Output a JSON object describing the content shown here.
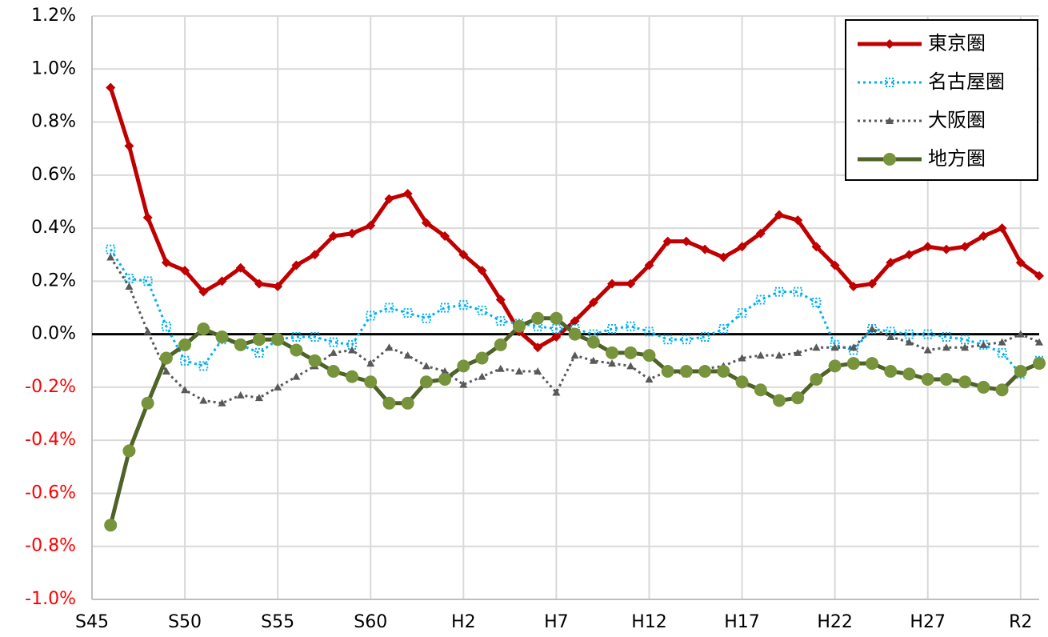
{
  "chart_data": {
    "type": "line",
    "categories": [
      "S45",
      null,
      null,
      null,
      null,
      "S50",
      null,
      null,
      null,
      null,
      "S55",
      null,
      null,
      null,
      null,
      "S60",
      null,
      null,
      null,
      null,
      "H2",
      null,
      null,
      null,
      null,
      "H7",
      null,
      null,
      null,
      null,
      "H12",
      null,
      null,
      null,
      null,
      "H17",
      null,
      null,
      null,
      null,
      "H22",
      null,
      null,
      null,
      null,
      "H27",
      null,
      null,
      null,
      null,
      "R2",
      null
    ],
    "series": [
      {
        "name": "東京圏",
        "color": "#c00000",
        "marker": "diamond",
        "dash": "solid",
        "values": [
          null,
          0.93,
          0.71,
          0.44,
          0.27,
          0.24,
          0.16,
          0.2,
          0.25,
          0.19,
          0.18,
          0.26,
          0.3,
          0.37,
          0.38,
          0.41,
          0.51,
          0.53,
          0.42,
          0.37,
          0.3,
          0.24,
          0.13,
          0.01,
          -0.05,
          -0.01,
          0.05,
          0.12,
          0.19,
          0.19,
          0.26,
          0.35,
          0.35,
          0.32,
          0.29,
          0.33,
          0.38,
          0.45,
          0.43,
          0.33,
          0.26,
          0.18,
          0.19,
          0.27,
          0.3,
          0.33,
          0.32,
          0.33,
          0.37,
          0.4,
          0.27,
          0.22
        ]
      },
      {
        "name": "名古屋圏",
        "color": "#00b0f0",
        "marker": "square",
        "dash": "dotted",
        "values": [
          null,
          0.32,
          0.21,
          0.2,
          0.03,
          -0.1,
          -0.12,
          -0.02,
          -0.04,
          -0.07,
          -0.02,
          -0.01,
          -0.01,
          -0.03,
          -0.04,
          0.07,
          0.1,
          0.08,
          0.06,
          0.1,
          0.11,
          0.09,
          0.05,
          0.04,
          0.03,
          0.02,
          0.02,
          0.0,
          0.02,
          0.03,
          0.01,
          -0.02,
          -0.02,
          -0.01,
          0.02,
          0.08,
          0.13,
          0.16,
          0.16,
          0.12,
          -0.04,
          -0.06,
          0.02,
          0.01,
          0.0,
          0.0,
          -0.01,
          -0.02,
          -0.04,
          -0.07,
          -0.15,
          -0.1
        ]
      },
      {
        "name": "大阪圏",
        "color": "#595959",
        "marker": "triangle",
        "dash": "dotted",
        "values": [
          null,
          0.29,
          0.18,
          0.01,
          -0.14,
          -0.21,
          -0.25,
          -0.26,
          -0.23,
          -0.24,
          -0.2,
          -0.16,
          -0.12,
          -0.07,
          -0.06,
          -0.11,
          -0.05,
          -0.08,
          -0.12,
          -0.14,
          -0.19,
          -0.16,
          -0.13,
          -0.14,
          -0.14,
          -0.22,
          -0.08,
          -0.1,
          -0.11,
          -0.12,
          -0.17,
          -0.14,
          -0.15,
          -0.13,
          -0.12,
          -0.09,
          -0.08,
          -0.08,
          -0.07,
          -0.05,
          -0.05,
          -0.05,
          0.02,
          -0.01,
          -0.03,
          -0.06,
          -0.05,
          -0.05,
          -0.04,
          -0.03,
          0.0,
          -0.03
        ]
      },
      {
        "name": "地方圏",
        "color": "#4f6228",
        "marker_color": "#77933c",
        "marker": "circle",
        "dash": "solid",
        "values": [
          null,
          -0.72,
          -0.44,
          -0.26,
          -0.09,
          -0.04,
          0.02,
          -0.01,
          -0.04,
          -0.02,
          -0.02,
          -0.06,
          -0.1,
          -0.14,
          -0.16,
          -0.18,
          -0.26,
          -0.26,
          -0.18,
          -0.17,
          -0.12,
          -0.09,
          -0.04,
          0.03,
          0.06,
          0.06,
          0.0,
          -0.03,
          -0.07,
          -0.07,
          -0.08,
          -0.14,
          -0.14,
          -0.14,
          -0.14,
          -0.18,
          -0.21,
          -0.25,
          -0.24,
          -0.17,
          -0.12,
          -0.11,
          -0.11,
          -0.14,
          -0.15,
          -0.17,
          -0.17,
          -0.18,
          -0.2,
          -0.21,
          -0.14,
          -0.11
        ]
      }
    ],
    "ylim": [
      -1.0,
      1.2
    ],
    "yticks": [
      {
        "value": -1.0,
        "label": "-1.0%"
      },
      {
        "value": -0.8,
        "label": "-0.8%"
      },
      {
        "value": -0.6,
        "label": "-0.6%"
      },
      {
        "value": -0.4,
        "label": "-0.4%"
      },
      {
        "value": -0.2,
        "label": "-0.2%"
      },
      {
        "value": 0,
        "label": "0.0%"
      },
      {
        "value": 0.2,
        "label": "0.2%"
      },
      {
        "value": 0.4,
        "label": "0.4%"
      },
      {
        "value": 0.6,
        "label": "0.6%"
      },
      {
        "value": 0.8,
        "label": "0.8%"
      },
      {
        "value": 1.0,
        "label": "1.0%"
      },
      {
        "value": 1.2,
        "label": "1.2%"
      }
    ],
    "grid": true,
    "negative_tick_color": "#ff0000",
    "legend": "upper right"
  }
}
